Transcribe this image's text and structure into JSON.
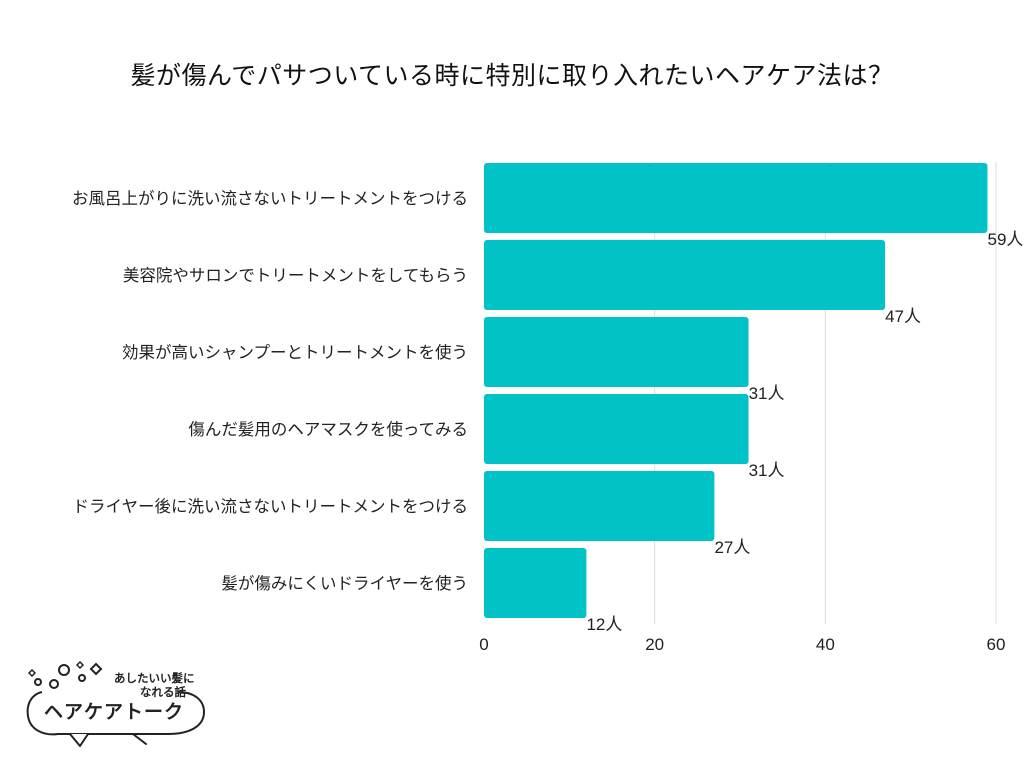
{
  "chart_data": {
    "type": "bar",
    "orientation": "horizontal",
    "title": "髪が傷んでパサついている時に特別に取り入れたいヘアケア法は？",
    "categories": [
      "お風呂上がりに洗い流さないトリートメントをつける",
      "美容院やサロンでトリートメントをしてもらう",
      "効果が高いシャンプーとトリートメントを使う",
      "傷んだ髪用のヘアマスクを使ってみる",
      "ドライヤー後に洗い流さないトリートメントをつける",
      "髪が傷みにくいドライヤーを使う"
    ],
    "values": [
      59,
      47,
      31,
      31,
      27,
      12
    ],
    "data_labels": [
      "59人",
      "47人",
      "31人",
      "31人",
      "27人",
      "12人"
    ],
    "xlim": [
      0,
      60
    ],
    "xticks": [
      0,
      20,
      40,
      60
    ],
    "xtick_labels": [
      "0",
      "20",
      "40",
      "60"
    ],
    "grid": true,
    "bar_color": "#00c2c7",
    "grid_color": "#dddddd"
  },
  "logo": {
    "tagline_line1": "あしたいい髪に",
    "tagline_line2": "なれる話",
    "brand": "ヘアケアトーク"
  }
}
